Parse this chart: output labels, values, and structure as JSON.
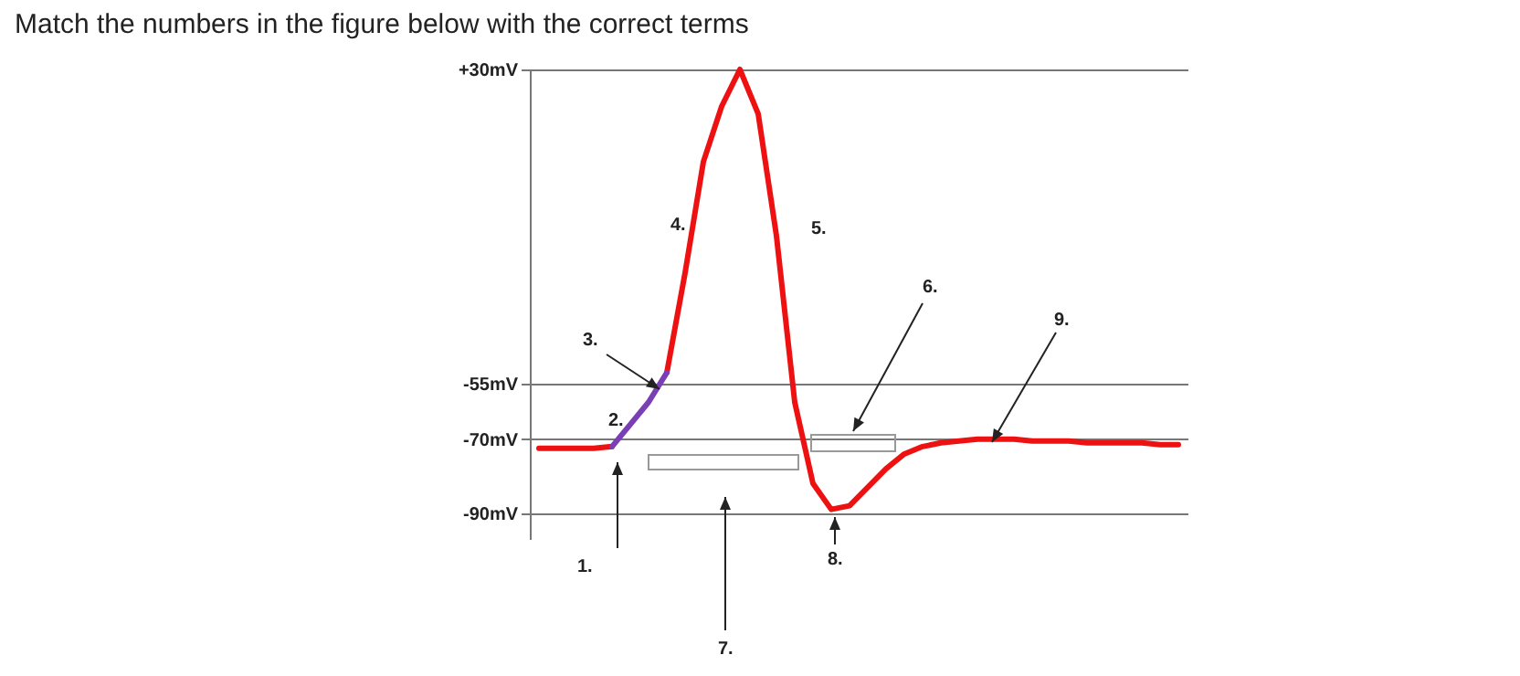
{
  "chart_data": {
    "type": "line",
    "title": "Match the numbers in the figure below with the correct terms",
    "categories": [
      null,
      null,
      null,
      null,
      null,
      null,
      null,
      null,
      null,
      null,
      null,
      null,
      null,
      null,
      null,
      null,
      null,
      null,
      null,
      null,
      null,
      null,
      null,
      null,
      null,
      null,
      null,
      null,
      null,
      null,
      null,
      null,
      null,
      null,
      null,
      null
    ],
    "series": [
      {
        "color": "#ee1111",
        "values": [
          -72.5,
          -72.5,
          -72.5,
          -72.5,
          -72,
          null,
          null,
          null,
          null,
          null,
          null,
          null,
          null,
          null,
          null,
          null,
          null,
          null,
          null,
          null,
          null,
          null,
          null,
          null,
          null,
          null,
          null,
          null,
          null,
          null,
          null,
          null,
          null,
          null,
          null,
          null
        ]
      },
      {
        "color": "#ee1111",
        "values": [
          null,
          null,
          null,
          null,
          null,
          null,
          null,
          -52,
          -25,
          5,
          20,
          30,
          18,
          -15,
          -60,
          -82,
          -89,
          -88,
          -83,
          -78,
          -74,
          -72,
          -71,
          -70.5,
          -70,
          -70,
          -70,
          -70.5,
          -70.5,
          -70.5,
          -71,
          -71,
          -71,
          -71,
          -71.5,
          -71.5
        ]
      },
      {
        "color": "#7b3fb5",
        "values": [
          null,
          null,
          null,
          null,
          -72,
          -66,
          -60,
          -52,
          null,
          null,
          null,
          null,
          null,
          null,
          null,
          null,
          null,
          null,
          null,
          null,
          null,
          null,
          null,
          null,
          null,
          null,
          null,
          null,
          null,
          null,
          null,
          null,
          null,
          null,
          null,
          null
        ]
      }
    ],
    "ylim": [
      -97,
      30
    ],
    "yticks": [
      {
        "value": 30,
        "label": "+30mV"
      },
      {
        "value": -55,
        "label": "-55mV"
      },
      {
        "value": -70,
        "label": "-70mV"
      },
      {
        "value": -90,
        "label": "-90mV"
      }
    ],
    "grid": "y",
    "tick_labels": "y",
    "legend": false,
    "annotations": [
      "1.",
      "2.",
      "3.",
      "4.",
      "5.",
      "6.",
      "7.",
      "8.",
      "9."
    ]
  }
}
